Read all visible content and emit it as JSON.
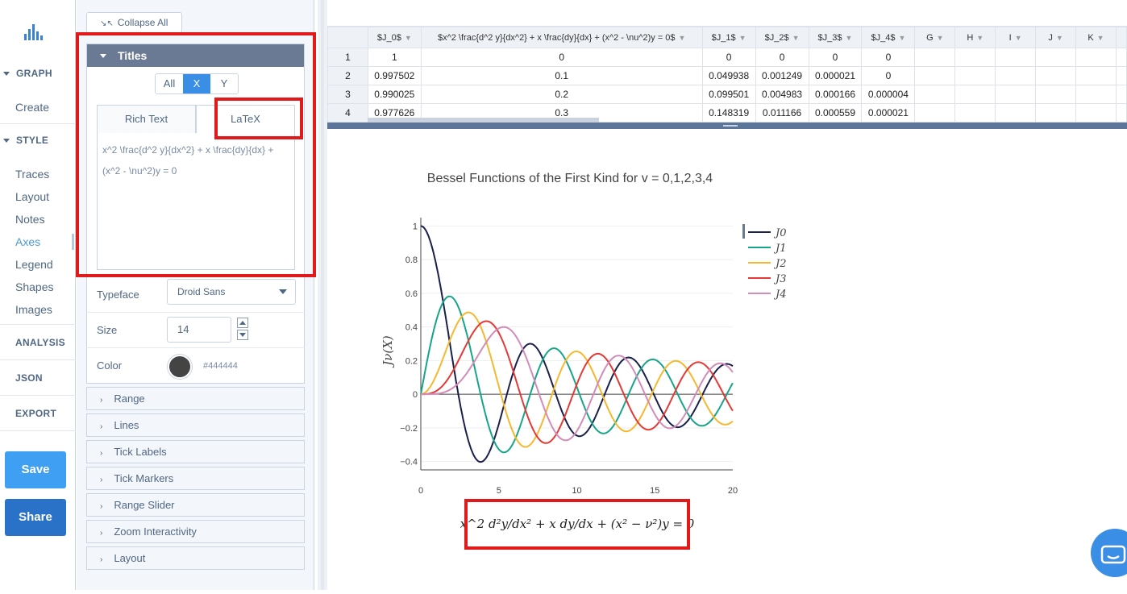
{
  "nav": {
    "sections": [
      {
        "label": "GRAPH",
        "items": [
          "Create"
        ]
      },
      {
        "label": "STYLE",
        "items": [
          "Traces",
          "Layout",
          "Notes",
          "Axes",
          "Legend",
          "Shapes",
          "Images"
        ]
      }
    ],
    "flat": [
      "ANALYSIS",
      "JSON",
      "EXPORT"
    ],
    "active_item": "Axes",
    "save_label": "Save",
    "share_label": "Share"
  },
  "panel": {
    "collapse_label": "Collapse All",
    "titles_header": "Titles",
    "axis_segments": [
      "All",
      "X",
      "Y"
    ],
    "selected_segment": "X",
    "tabs": [
      "Rich Text",
      "LaTeX"
    ],
    "selected_tab": "LaTeX",
    "latex_value": "x^2 \\frac{d^2 y}{dx^2} + x \\frac{dy}{dx} + (x^2 - \\nu^2)y = 0",
    "typeface_label": "Typeface",
    "typeface_value": "Droid Sans",
    "size_label": "Size",
    "size_value": "14",
    "color_label": "Color",
    "color_value": "#444444",
    "folds": [
      "Range",
      "Lines",
      "Tick Labels",
      "Tick Markers",
      "Range Slider",
      "Zoom Interactivity",
      "Layout"
    ]
  },
  "grid": {
    "columns": [
      "$J_0$",
      "$x^2 \\frac{d^2 y}{dx^2} + x \\frac{dy}{dx} + (x^2 - \\nu^2)y = 0$",
      "$J_1$",
      "$J_2$",
      "$J_3$",
      "$J_4$",
      "G",
      "H",
      "I",
      "J",
      "K"
    ],
    "rows": [
      {
        "n": "1",
        "cells": [
          "1",
          "0",
          "0",
          "0",
          "0",
          "0",
          "",
          "",
          "",
          "",
          ""
        ]
      },
      {
        "n": "2",
        "cells": [
          "0.997502",
          "0.1",
          "0.049938",
          "0.001249",
          "0.000021",
          "0",
          "",
          "",
          "",
          "",
          ""
        ]
      },
      {
        "n": "3",
        "cells": [
          "0.990025",
          "0.2",
          "0.099501",
          "0.004983",
          "0.000166",
          "0.000004",
          "",
          "",
          "",
          "",
          ""
        ]
      },
      {
        "n": "4",
        "cells": [
          "0.977626",
          "0.3",
          "0.148319",
          "0.011166",
          "0.000559",
          "0.000021",
          "",
          "",
          "",
          "",
          ""
        ]
      }
    ]
  },
  "chart_data": {
    "type": "line",
    "title": "Bessel Functions of the First Kind for v = 0,1,2,3,4",
    "xlabel": "x^2 d²y/dx² + x dy/dx + (x² − ν²)y = 0",
    "ylabel": "Jν(X)",
    "xlim": [
      0,
      20
    ],
    "ylim": [
      -0.4,
      1
    ],
    "xticks": [
      "0",
      "5",
      "10",
      "15",
      "20"
    ],
    "yticks": [
      "−0.4",
      "−0.2",
      "0",
      "0.2",
      "0.4",
      "0.6",
      "0.8",
      "1"
    ],
    "legend_position": "top-right",
    "series": [
      {
        "name": "J0",
        "order": 0,
        "color": "#1a1f4d"
      },
      {
        "name": "J1",
        "order": 1,
        "color": "#17a589"
      },
      {
        "name": "J2",
        "order": 2,
        "color": "#f5b82e"
      },
      {
        "name": "J3",
        "order": 3,
        "color": "#e53935"
      },
      {
        "name": "J4",
        "order": 4,
        "color": "#d38bb8"
      }
    ]
  }
}
